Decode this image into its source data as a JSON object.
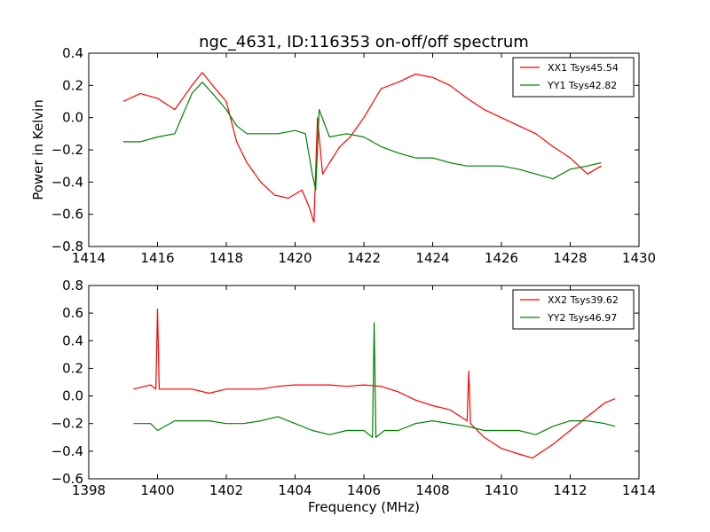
{
  "chart_data": [
    {
      "type": "line",
      "title": "ngc_4631, ID:116353 on-off/off spectrum",
      "xlabel": "",
      "ylabel": "Power in Kelvin",
      "xlim": [
        1414,
        1430
      ],
      "ylim": [
        -0.8,
        0.4
      ],
      "xticks": [
        "1414",
        "1416",
        "1418",
        "1420",
        "1422",
        "1424",
        "1426",
        "1428",
        "1430"
      ],
      "yticks": [
        "0.4",
        "0.2",
        "0.0",
        "−0.2",
        "−0.4",
        "−0.6",
        "−0.8"
      ],
      "legend_position": "top-right",
      "grid": false,
      "series": [
        {
          "name": "XX1 Tsys45.54",
          "color": "#ff0000",
          "x": [
            1415.0,
            1415.5,
            1416.0,
            1416.5,
            1417.0,
            1417.3,
            1417.6,
            1418.0,
            1418.3,
            1418.6,
            1419.0,
            1419.4,
            1419.8,
            1420.2,
            1420.4,
            1420.55,
            1420.65,
            1420.8,
            1421.0,
            1421.3,
            1421.6,
            1422.0,
            1422.5,
            1423.0,
            1423.5,
            1424.0,
            1424.5,
            1425.0,
            1425.5,
            1426.0,
            1426.5,
            1427.0,
            1427.5,
            1428.0,
            1428.5,
            1428.9
          ],
          "values": [
            0.1,
            0.15,
            0.12,
            0.05,
            0.2,
            0.28,
            0.2,
            0.1,
            -0.15,
            -0.28,
            -0.4,
            -0.48,
            -0.5,
            -0.45,
            -0.55,
            -0.65,
            0.0,
            -0.35,
            -0.28,
            -0.18,
            -0.12,
            0.0,
            0.18,
            0.22,
            0.27,
            0.25,
            0.2,
            0.12,
            0.05,
            0.0,
            -0.05,
            -0.1,
            -0.18,
            -0.25,
            -0.35,
            -0.3
          ]
        },
        {
          "name": "YY1 Tsys42.82",
          "color": "#008000",
          "x": [
            1415.0,
            1415.5,
            1416.0,
            1416.5,
            1417.0,
            1417.3,
            1417.6,
            1418.0,
            1418.3,
            1418.6,
            1419.0,
            1419.5,
            1420.0,
            1420.3,
            1420.5,
            1420.6,
            1420.7,
            1421.0,
            1421.5,
            1422.0,
            1422.5,
            1423.0,
            1423.5,
            1424.0,
            1424.5,
            1425.0,
            1425.5,
            1426.0,
            1426.5,
            1427.0,
            1427.5,
            1428.0,
            1428.5,
            1428.9
          ],
          "values": [
            -0.15,
            -0.15,
            -0.12,
            -0.1,
            0.15,
            0.22,
            0.15,
            0.05,
            -0.05,
            -0.1,
            -0.1,
            -0.1,
            -0.08,
            -0.1,
            -0.35,
            -0.45,
            0.05,
            -0.12,
            -0.1,
            -0.12,
            -0.18,
            -0.22,
            -0.25,
            -0.25,
            -0.28,
            -0.3,
            -0.3,
            -0.3,
            -0.32,
            -0.35,
            -0.38,
            -0.32,
            -0.3,
            -0.28
          ]
        }
      ]
    },
    {
      "type": "line",
      "title": "",
      "xlabel": "Frequency (MHz)",
      "ylabel": "",
      "xlim": [
        1398,
        1414
      ],
      "ylim": [
        -0.6,
        0.8
      ],
      "xticks": [
        "1398",
        "1400",
        "1402",
        "1404",
        "1406",
        "1408",
        "1410",
        "1412",
        "1414"
      ],
      "yticks": [
        "0.8",
        "0.6",
        "0.4",
        "0.2",
        "0.0",
        "−0.2",
        "−0.4",
        "−0.6"
      ],
      "legend_position": "top-right",
      "grid": false,
      "series": [
        {
          "name": "XX2 Tsys39.62",
          "color": "#ff0000",
          "x": [
            1399.3,
            1399.8,
            1399.95,
            1400.0,
            1400.05,
            1400.5,
            1401.0,
            1401.5,
            1402.0,
            1402.5,
            1403.0,
            1403.5,
            1404.0,
            1404.5,
            1405.0,
            1405.5,
            1406.0,
            1406.5,
            1407.0,
            1407.5,
            1408.0,
            1408.5,
            1409.0,
            1409.05,
            1409.1,
            1409.5,
            1410.0,
            1410.5,
            1410.9,
            1411.5,
            1412.0,
            1412.5,
            1413.0,
            1413.3
          ],
          "values": [
            0.05,
            0.08,
            0.05,
            0.63,
            0.05,
            0.05,
            0.05,
            0.02,
            0.05,
            0.05,
            0.05,
            0.07,
            0.08,
            0.08,
            0.08,
            0.07,
            0.08,
            0.07,
            0.03,
            -0.03,
            -0.07,
            -0.1,
            -0.18,
            0.18,
            -0.2,
            -0.3,
            -0.38,
            -0.42,
            -0.45,
            -0.35,
            -0.25,
            -0.15,
            -0.05,
            -0.02
          ]
        },
        {
          "name": "YY2 Tsys46.97",
          "color": "#008000",
          "x": [
            1399.3,
            1399.8,
            1400.0,
            1400.5,
            1401.0,
            1401.5,
            1402.0,
            1402.5,
            1403.0,
            1403.5,
            1404.0,
            1404.5,
            1405.0,
            1405.5,
            1406.0,
            1406.25,
            1406.3,
            1406.35,
            1406.6,
            1407.0,
            1407.5,
            1408.0,
            1408.5,
            1409.0,
            1409.5,
            1410.0,
            1410.5,
            1411.0,
            1411.5,
            1412.0,
            1412.5,
            1413.0,
            1413.3
          ],
          "values": [
            -0.2,
            -0.2,
            -0.25,
            -0.18,
            -0.18,
            -0.18,
            -0.2,
            -0.2,
            -0.18,
            -0.15,
            -0.2,
            -0.25,
            -0.28,
            -0.25,
            -0.25,
            -0.3,
            0.53,
            -0.3,
            -0.25,
            -0.25,
            -0.2,
            -0.18,
            -0.2,
            -0.22,
            -0.25,
            -0.25,
            -0.25,
            -0.28,
            -0.22,
            -0.18,
            -0.18,
            -0.2,
            -0.22
          ]
        }
      ]
    }
  ]
}
